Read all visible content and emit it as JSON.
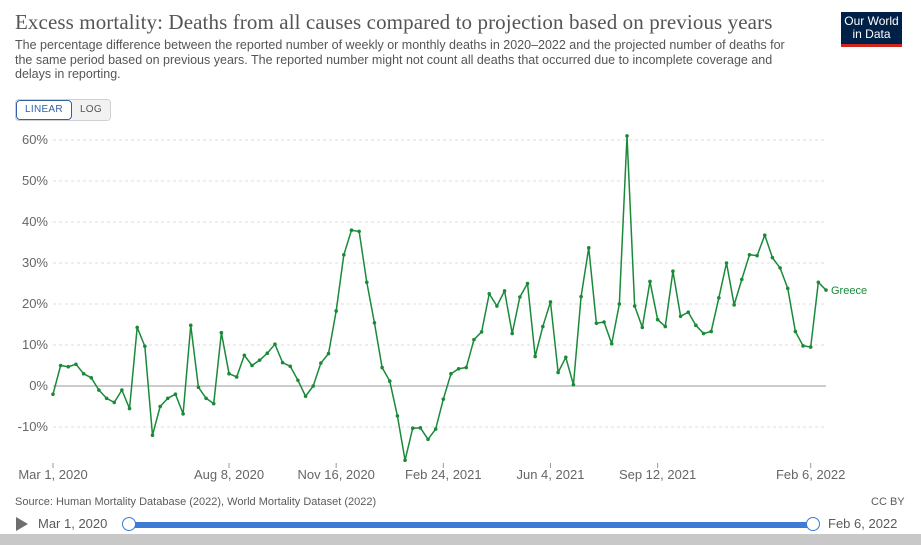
{
  "header": {
    "title": "Excess mortality: Deaths from all causes compared to projection based on previous years",
    "subtitle": "The percentage difference between the reported number of weekly or monthly deaths in 2020–2022 and the projected number of deaths for the same period based on previous years. The reported number might not count all deaths that occurred due to incomplete coverage and delays in reporting.",
    "logo_line1": "Our World",
    "logo_line2": "in Data"
  },
  "toggle": {
    "linear_label": "LINEAR",
    "log_label": "LOG",
    "selected": "LINEAR"
  },
  "footer": {
    "source": "Source: Human Mortality Database (2022), World Mortality Dataset (2022)",
    "license": "CC BY"
  },
  "timeline": {
    "start_label": "Mar 1, 2020",
    "end_label": "Feb 6, 2022"
  },
  "colors": {
    "series": "#1a8a3a",
    "accent": "#3d7bd4",
    "logo_bg": "#002147",
    "logo_stripe": "#ce261e"
  },
  "chart_data": {
    "type": "line",
    "ylim": [
      -18,
      62
    ],
    "y_ticks": [
      -10,
      0,
      10,
      20,
      30,
      40,
      50,
      60
    ],
    "y_tick_labels": [
      "-10%",
      "0%",
      "10%",
      "20%",
      "30%",
      "40%",
      "50%",
      "60%"
    ],
    "x_ticks": [
      {
        "label": "Mar 1, 2020",
        "week": 1
      },
      {
        "label": "Aug 8, 2020",
        "week": 24
      },
      {
        "label": "Nov 16, 2020",
        "week": 38
      },
      {
        "label": "Feb 24, 2021",
        "week": 52
      },
      {
        "label": "Jun 4, 2021",
        "week": 66
      },
      {
        "label": "Sep 12, 2021",
        "week": 80
      },
      {
        "label": "Feb 6, 2022",
        "week": 100
      }
    ],
    "grid": true,
    "series": [
      {
        "name": "Greece",
        "values": [
          -2,
          5,
          4.7,
          5.3,
          3,
          2,
          -1,
          -3,
          -4,
          -1,
          -5.5,
          14.3,
          9.7,
          -12,
          -5,
          -3,
          -2,
          -6.8,
          14.8,
          -0.3,
          -3,
          -4.3,
          13,
          3,
          2.2,
          7.5,
          5,
          6.3,
          8,
          10.2,
          5.7,
          4.8,
          1.4,
          -2.5,
          0,
          5.6,
          7.9,
          18.3,
          32,
          38,
          37.7,
          25.3,
          15.4,
          4.5,
          1.2,
          -7.3,
          -18.1,
          -10.3,
          -10.2,
          -13,
          -10.5,
          -3.2,
          3,
          4.2,
          4.5,
          11.3,
          13.2,
          22.5,
          19.5,
          23.2,
          12.8,
          21.7,
          25,
          7.2,
          14.5,
          20.5,
          3.3,
          7,
          0.3,
          21.8,
          33.7,
          15.3,
          15.6,
          10.3,
          20,
          61,
          19.5,
          14.3,
          25.5,
          16.2,
          14.5,
          28,
          17,
          18,
          14.8,
          12.8,
          13.3,
          21.5,
          30,
          19.8,
          26,
          32,
          31.8,
          36.8,
          31.3,
          28.8,
          23.8,
          13.3,
          9.8,
          9.5,
          25.3,
          23.4
        ]
      }
    ]
  }
}
